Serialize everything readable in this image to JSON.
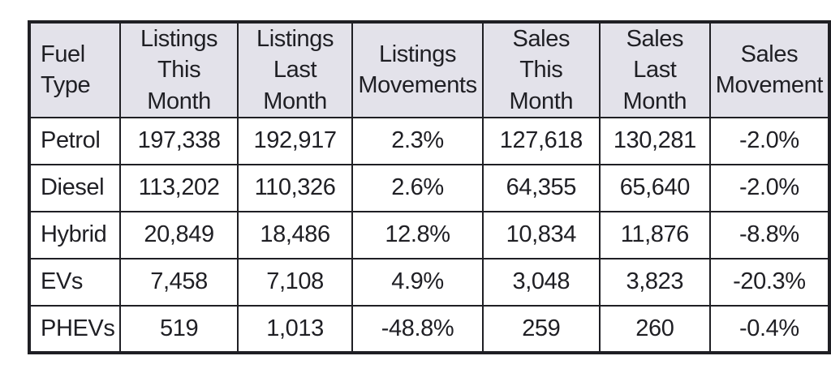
{
  "colors": {
    "page_bg": "#ffffff",
    "header_bg": "#e3e2ea",
    "row_bg": "#ffffff",
    "border": "#1f1f24",
    "text": "#1f1f24"
  },
  "chart_data": {
    "type": "table",
    "columns": [
      "Fuel\nType",
      "Listings\nThis Month",
      "Listings\nLast Month",
      "Listings\nMovements",
      "Sales\nThis Month",
      "Sales\nLast Month",
      "Sales\nMovement"
    ],
    "rows": [
      [
        "Petrol",
        "197,338",
        "192,917",
        "2.3%",
        "127,618",
        "130,281",
        "-2.0%"
      ],
      [
        "Diesel",
        "113,202",
        "110,326",
        "2.6%",
        "64,355",
        "65,640",
        "-2.0%"
      ],
      [
        "Hybrid",
        "20,849",
        "18,486",
        "12.8%",
        "10,834",
        "11,876",
        "-8.8%"
      ],
      [
        "EVs",
        "7,458",
        "7,108",
        "4.9%",
        "3,048",
        "3,823",
        "-20.3%"
      ],
      [
        "PHEVs",
        "519",
        "1,013",
        "-48.8%",
        "259",
        "260",
        "-0.4%"
      ]
    ]
  }
}
